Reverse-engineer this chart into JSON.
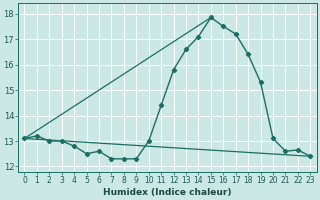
{
  "xlabel": "Humidex (Indice chaleur)",
  "background_color": "#cce8e4",
  "grid_color": "#ffffff",
  "line_color": "#1a6e64",
  "xlim": [
    -0.5,
    23.5
  ],
  "ylim": [
    11.8,
    18.4
  ],
  "yticks": [
    12,
    13,
    14,
    15,
    16,
    17,
    18
  ],
  "xticks": [
    0,
    1,
    2,
    3,
    4,
    5,
    6,
    7,
    8,
    9,
    10,
    11,
    12,
    13,
    14,
    15,
    16,
    17,
    18,
    19,
    20,
    21,
    22,
    23
  ],
  "main_x": [
    0,
    1,
    2,
    3,
    4,
    5,
    6,
    7,
    8,
    9,
    10,
    11,
    12,
    13,
    14,
    15,
    16,
    17,
    18,
    19,
    20,
    21,
    22,
    23
  ],
  "main_y": [
    13.1,
    13.2,
    13.0,
    13.0,
    12.8,
    12.5,
    12.6,
    12.3,
    12.3,
    12.3,
    13.0,
    14.4,
    15.8,
    16.6,
    17.1,
    17.85,
    17.5,
    17.2,
    16.4,
    15.3,
    13.1,
    12.6,
    12.65,
    12.4
  ],
  "line2_x": [
    0,
    15
  ],
  "line2_y": [
    13.1,
    17.85
  ],
  "line3_x": [
    0,
    23
  ],
  "line3_y": [
    13.1,
    12.4
  ],
  "marker": "D",
  "markersize": 2.2,
  "linewidth": 1.0,
  "xlabel_fontsize": 6.5,
  "tick_fontsize": 5.5
}
